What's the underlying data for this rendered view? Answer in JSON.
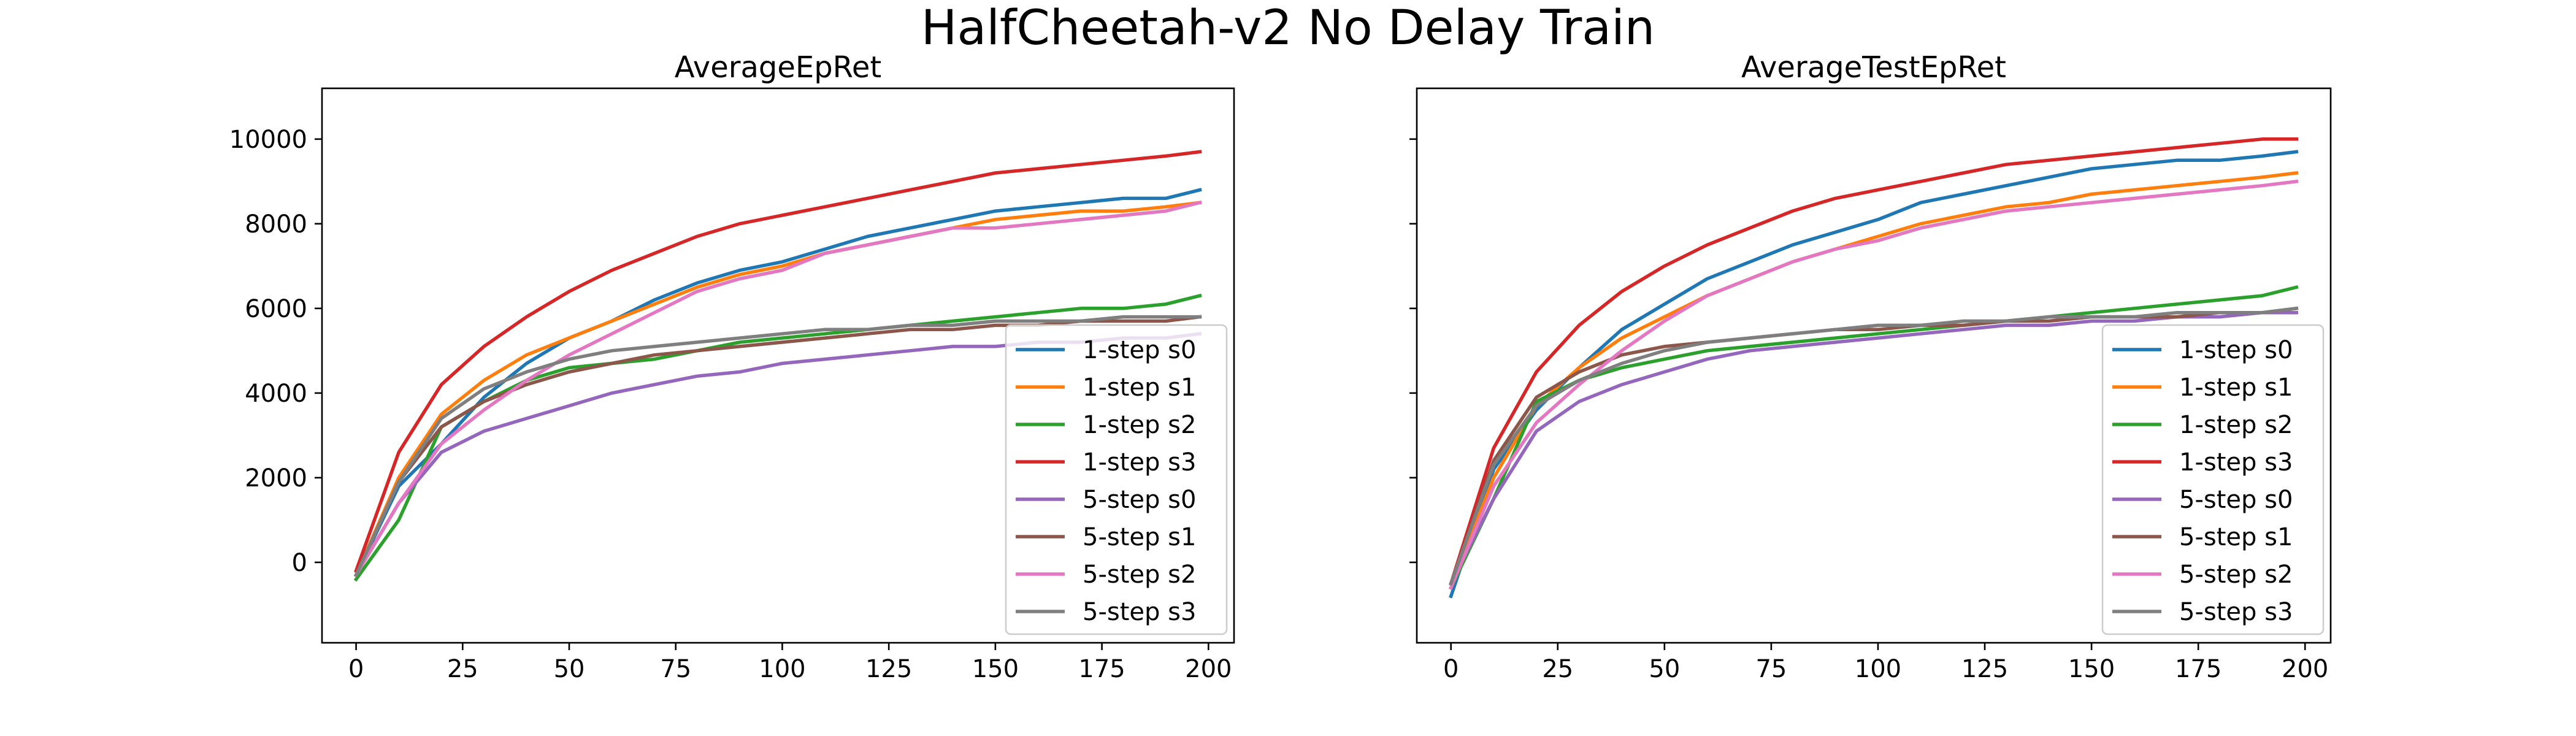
{
  "figure": {
    "title": "HalfCheetah-v2 No Delay Train"
  },
  "chart_data": [
    {
      "type": "line",
      "title": "AverageEpRet",
      "xlabel": "",
      "ylabel": "",
      "xlim": [
        -8,
        206
      ],
      "ylim": [
        -1900,
        11200
      ],
      "xticks": [
        0,
        25,
        50,
        75,
        100,
        125,
        150,
        175,
        200
      ],
      "yticks": [
        0,
        2000,
        4000,
        6000,
        8000,
        10000
      ],
      "grid": false,
      "legend_position": "lower-right",
      "x": [
        0,
        10,
        20,
        30,
        40,
        50,
        60,
        70,
        80,
        90,
        100,
        110,
        120,
        130,
        140,
        150,
        160,
        170,
        180,
        190,
        198
      ],
      "series": [
        {
          "name": "1-step s0",
          "color": "#1f77b4",
          "values": [
            -300,
            1800,
            2800,
            3900,
            4700,
            5300,
            5700,
            6200,
            6600,
            6900,
            7100,
            7400,
            7700,
            7900,
            8100,
            8300,
            8400,
            8500,
            8600,
            8600,
            8800
          ]
        },
        {
          "name": "1-step s1",
          "color": "#ff7f0e",
          "values": [
            -300,
            2000,
            3500,
            4300,
            4900,
            5300,
            5700,
            6100,
            6500,
            6800,
            7000,
            7300,
            7500,
            7700,
            7900,
            8100,
            8200,
            8300,
            8300,
            8400,
            8500
          ]
        },
        {
          "name": "1-step s2",
          "color": "#2ca02c",
          "values": [
            -400,
            1000,
            3200,
            3800,
            4300,
            4600,
            4700,
            4800,
            5000,
            5200,
            5300,
            5400,
            5500,
            5600,
            5700,
            5800,
            5900,
            6000,
            6000,
            6100,
            6300
          ]
        },
        {
          "name": "1-step s3",
          "color": "#d62728",
          "values": [
            -200,
            2600,
            4200,
            5100,
            5800,
            6400,
            6900,
            7300,
            7700,
            8000,
            8200,
            8400,
            8600,
            8800,
            9000,
            9200,
            9300,
            9400,
            9500,
            9600,
            9700
          ]
        },
        {
          "name": "5-step s0",
          "color": "#9467bd",
          "values": [
            -300,
            1400,
            2600,
            3100,
            3400,
            3700,
            4000,
            4200,
            4400,
            4500,
            4700,
            4800,
            4900,
            5000,
            5100,
            5100,
            5200,
            5200,
            5300,
            5300,
            5400
          ]
        },
        {
          "name": "5-step s1",
          "color": "#8c564b",
          "values": [
            -300,
            1900,
            3200,
            3800,
            4200,
            4500,
            4700,
            4900,
            5000,
            5100,
            5200,
            5300,
            5400,
            5500,
            5500,
            5600,
            5600,
            5700,
            5700,
            5700,
            5800
          ]
        },
        {
          "name": "5-step s2",
          "color": "#e377c2",
          "values": [
            -300,
            1400,
            2800,
            3600,
            4300,
            4900,
            5400,
            5900,
            6400,
            6700,
            6900,
            7300,
            7500,
            7700,
            7900,
            7900,
            8000,
            8100,
            8200,
            8300,
            8500
          ]
        },
        {
          "name": "5-step s3",
          "color": "#7f7f7f",
          "values": [
            -300,
            1900,
            3400,
            4100,
            4500,
            4800,
            5000,
            5100,
            5200,
            5300,
            5400,
            5500,
            5500,
            5600,
            5600,
            5700,
            5700,
            5700,
            5800,
            5800,
            5800
          ]
        }
      ]
    },
    {
      "type": "line",
      "title": "AverageTestEpRet",
      "xlabel": "",
      "ylabel": "",
      "xlim": [
        -8,
        206
      ],
      "ylim": [
        -1900,
        11200
      ],
      "xticks": [
        0,
        25,
        50,
        75,
        100,
        125,
        150,
        175,
        200
      ],
      "yticks": [
        0,
        2000,
        4000,
        6000,
        8000,
        10000
      ],
      "grid": false,
      "legend_position": "lower-right",
      "x": [
        0,
        10,
        20,
        30,
        40,
        50,
        60,
        70,
        80,
        90,
        100,
        110,
        120,
        130,
        140,
        150,
        160,
        170,
        180,
        190,
        198
      ],
      "series": [
        {
          "name": "1-step s0",
          "color": "#1f77b4",
          "values": [
            -800,
            2200,
            3600,
            4600,
            5500,
            6100,
            6700,
            7100,
            7500,
            7800,
            8100,
            8500,
            8700,
            8900,
            9100,
            9300,
            9400,
            9500,
            9500,
            9600,
            9700
          ]
        },
        {
          "name": "1-step s1",
          "color": "#ff7f0e",
          "values": [
            -600,
            2000,
            3700,
            4600,
            5300,
            5800,
            6300,
            6700,
            7100,
            7400,
            7700,
            8000,
            8200,
            8400,
            8500,
            8700,
            8800,
            8900,
            9000,
            9100,
            9200
          ]
        },
        {
          "name": "1-step s2",
          "color": "#2ca02c",
          "values": [
            -600,
            1500,
            3800,
            4300,
            4600,
            4800,
            5000,
            5100,
            5200,
            5300,
            5400,
            5500,
            5600,
            5700,
            5800,
            5900,
            6000,
            6100,
            6200,
            6300,
            6500
          ]
        },
        {
          "name": "1-step s3",
          "color": "#d62728",
          "values": [
            -500,
            2700,
            4500,
            5600,
            6400,
            7000,
            7500,
            7900,
            8300,
            8600,
            8800,
            9000,
            9200,
            9400,
            9500,
            9600,
            9700,
            9800,
            9900,
            10000,
            10000
          ]
        },
        {
          "name": "5-step s0",
          "color": "#9467bd",
          "values": [
            -500,
            1500,
            3100,
            3800,
            4200,
            4500,
            4800,
            5000,
            5100,
            5200,
            5300,
            5400,
            5500,
            5600,
            5600,
            5700,
            5700,
            5800,
            5800,
            5900,
            5900
          ]
        },
        {
          "name": "5-step s1",
          "color": "#8c564b",
          "values": [
            -500,
            2400,
            3900,
            4500,
            4900,
            5100,
            5200,
            5300,
            5400,
            5500,
            5500,
            5600,
            5600,
            5700,
            5700,
            5800,
            5800,
            5800,
            5900,
            5900,
            6000
          ]
        },
        {
          "name": "5-step s2",
          "color": "#e377c2",
          "values": [
            -600,
            1800,
            3300,
            4200,
            5000,
            5700,
            6300,
            6700,
            7100,
            7400,
            7600,
            7900,
            8100,
            8300,
            8400,
            8500,
            8600,
            8700,
            8800,
            8900,
            9000
          ]
        },
        {
          "name": "5-step s3",
          "color": "#7f7f7f",
          "values": [
            -500,
            2300,
            3700,
            4300,
            4700,
            5000,
            5200,
            5300,
            5400,
            5500,
            5600,
            5600,
            5700,
            5700,
            5800,
            5800,
            5800,
            5900,
            5900,
            5900,
            6000
          ]
        }
      ]
    }
  ]
}
